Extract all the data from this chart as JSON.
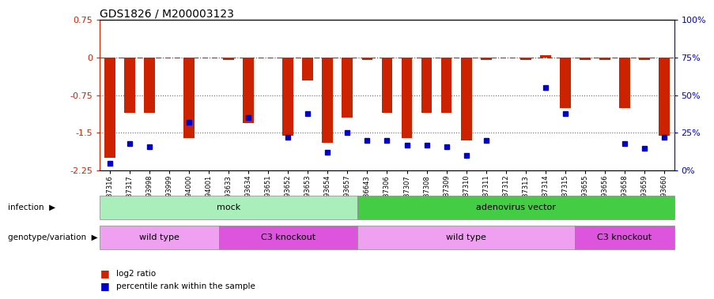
{
  "title": "GDS1826 / M200003123",
  "samples": [
    "GSM87316",
    "GSM87317",
    "GSM93998",
    "GSM93999",
    "GSM94000",
    "GSM94001",
    "GSM93633",
    "GSM93634",
    "GSM93651",
    "GSM93652",
    "GSM93653",
    "GSM93654",
    "GSM93657",
    "GSM86643",
    "GSM87306",
    "GSM87307",
    "GSM87308",
    "GSM87309",
    "GSM87310",
    "GSM87311",
    "GSM87312",
    "GSM87313",
    "GSM87314",
    "GSM87315",
    "GSM93655",
    "GSM93656",
    "GSM93658",
    "GSM93659",
    "GSM93660"
  ],
  "log2_ratio": [
    -2.0,
    -1.1,
    -1.1,
    0.0,
    -1.6,
    0.0,
    -0.05,
    -1.3,
    0.0,
    -1.55,
    -0.45,
    -1.7,
    -1.2,
    -0.05,
    -1.1,
    -1.6,
    -1.1,
    -1.1,
    -1.65,
    -0.05,
    0.0,
    -0.05,
    0.05,
    -1.0,
    -0.05,
    -0.05,
    -1.0,
    -0.05,
    -1.55
  ],
  "percentile": [
    5,
    18,
    16,
    null,
    32,
    null,
    null,
    35,
    null,
    22,
    38,
    12,
    25,
    20,
    20,
    17,
    17,
    16,
    10,
    20,
    null,
    null,
    55,
    38,
    null,
    null,
    18,
    15,
    22
  ],
  "ylim_left": [
    -2.25,
    0.75
  ],
  "ylim_right": [
    0,
    100
  ],
  "hline_y": [
    0.0,
    -0.75,
    -1.5
  ],
  "hline_styles": [
    "dashdot",
    "dotted",
    "dotted"
  ],
  "hline_colors": [
    "#cc2200",
    "#666666",
    "#666666"
  ],
  "bar_color": "#cc2200",
  "dot_color": "#0000cc",
  "yticks_left": [
    0.75,
    0,
    -0.75,
    -1.5,
    -2.25
  ],
  "yticks_right": [
    100,
    75,
    50,
    25,
    0
  ],
  "infection_labels": [
    {
      "label": "mock",
      "start": 0,
      "end": 13,
      "color": "#aaeebb"
    },
    {
      "label": "adenovirus vector",
      "start": 13,
      "end": 29,
      "color": "#44cc44"
    }
  ],
  "genotype_labels": [
    {
      "label": "wild type",
      "start": 0,
      "end": 6,
      "color": "#f0a0f0"
    },
    {
      "label": "C3 knockout",
      "start": 6,
      "end": 13,
      "color": "#dd55dd"
    },
    {
      "label": "wild type",
      "start": 13,
      "end": 24,
      "color": "#f0a0f0"
    },
    {
      "label": "C3 knockout",
      "start": 24,
      "end": 29,
      "color": "#dd55dd"
    }
  ],
  "legend_items": [
    {
      "label": "log2 ratio",
      "color": "#cc2200"
    },
    {
      "label": "percentile rank within the sample",
      "color": "#0000cc"
    }
  ],
  "bar_width": 0.55,
  "background_color": "#ffffff"
}
